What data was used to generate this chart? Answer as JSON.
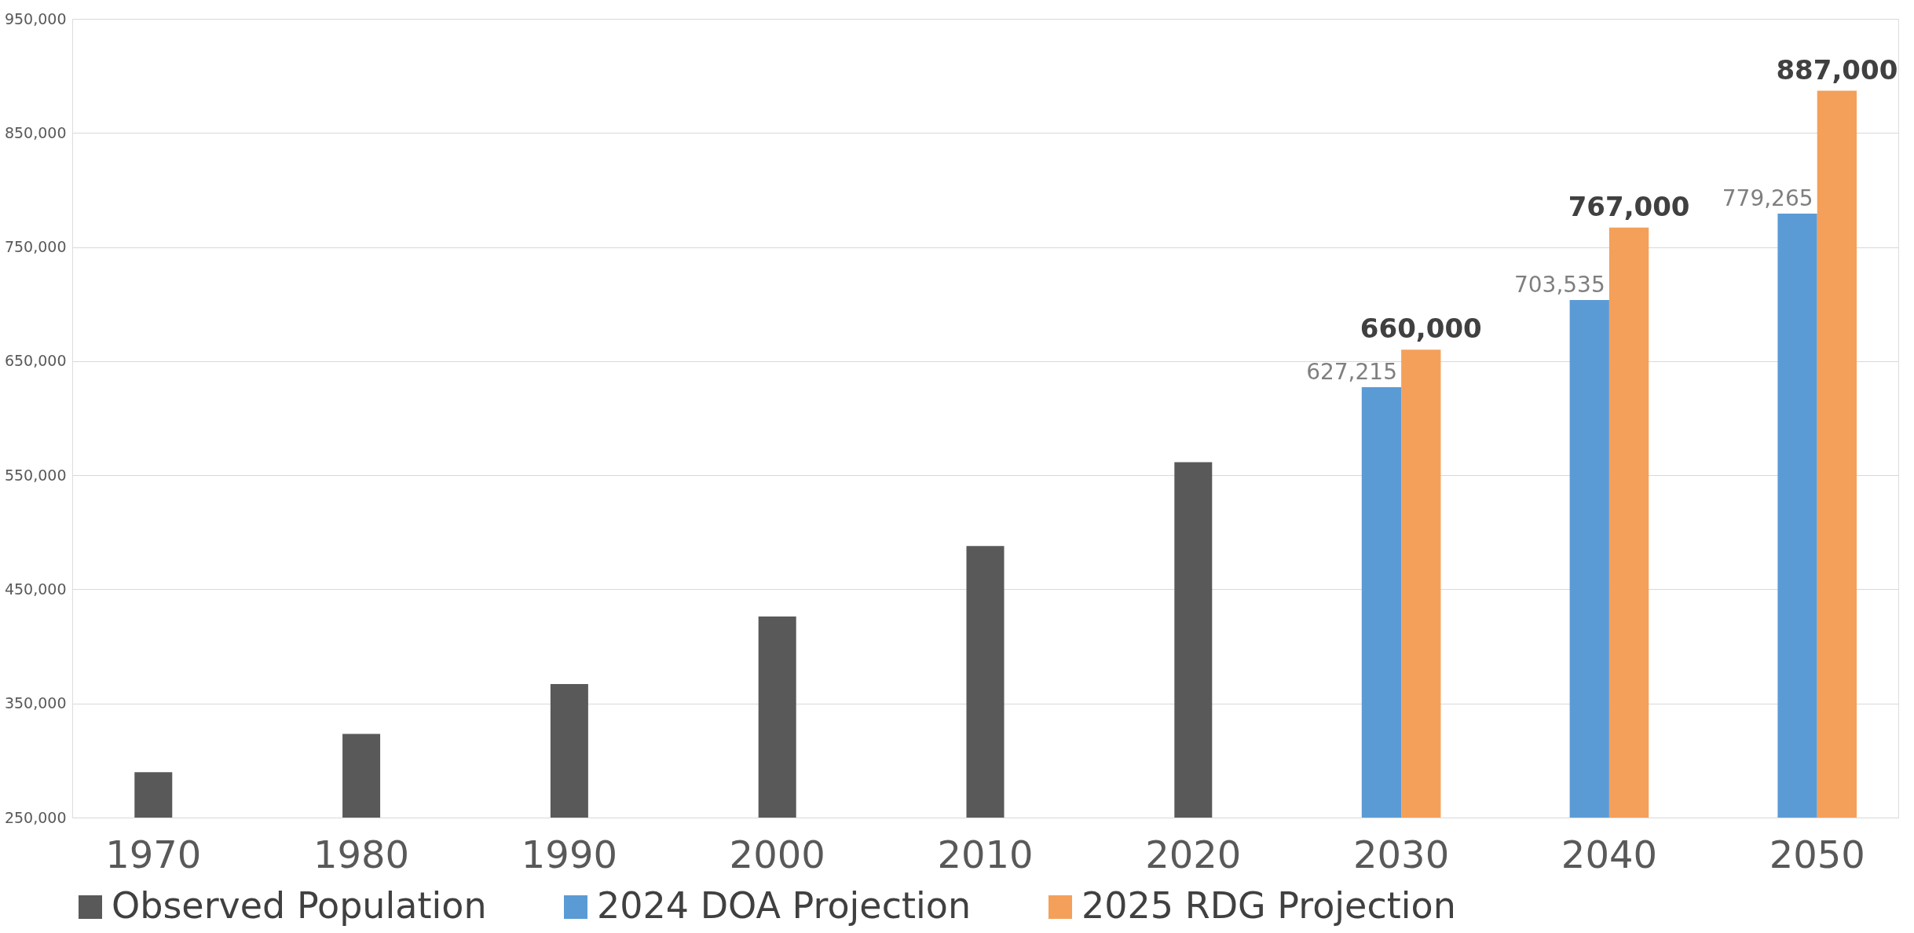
{
  "chart_data": {
    "type": "bar",
    "categories": [
      "1970",
      "1980",
      "1990",
      "2000",
      "2010",
      "2020",
      "2030",
      "2040",
      "2050"
    ],
    "series": [
      {
        "name": "Observed Population",
        "color": "#595959",
        "values": [
          289700,
          323300,
          367000,
          426200,
          488000,
          561400,
          null,
          null,
          null
        ]
      },
      {
        "name": "2024 DOA Projection",
        "color": "#5b9bd5",
        "values": [
          null,
          null,
          null,
          null,
          null,
          null,
          627215,
          703535,
          779265
        ],
        "value_labels": [
          null,
          null,
          null,
          null,
          null,
          null,
          "627,215",
          "703,535",
          "779,265"
        ]
      },
      {
        "name": "2025 RDG Projection",
        "color": "#f4a05a",
        "values": [
          null,
          null,
          null,
          null,
          null,
          null,
          660000,
          767000,
          887000
        ],
        "value_labels": [
          null,
          null,
          null,
          null,
          null,
          null,
          "660,000",
          "767,000",
          "887,000"
        ]
      }
    ],
    "ylim": [
      250000,
      950000
    ],
    "yticks": [
      {
        "value": 250000,
        "label": "250,000"
      },
      {
        "value": 350000,
        "label": "350,000"
      },
      {
        "value": 450000,
        "label": "450,000"
      },
      {
        "value": 550000,
        "label": "550,000"
      },
      {
        "value": 650000,
        "label": "650,000"
      },
      {
        "value": 750000,
        "label": "750,000"
      },
      {
        "value": 850000,
        "label": "850,000"
      },
      {
        "value": 950000,
        "label": "950,000"
      }
    ],
    "grid": "y",
    "legend": "bottom"
  }
}
